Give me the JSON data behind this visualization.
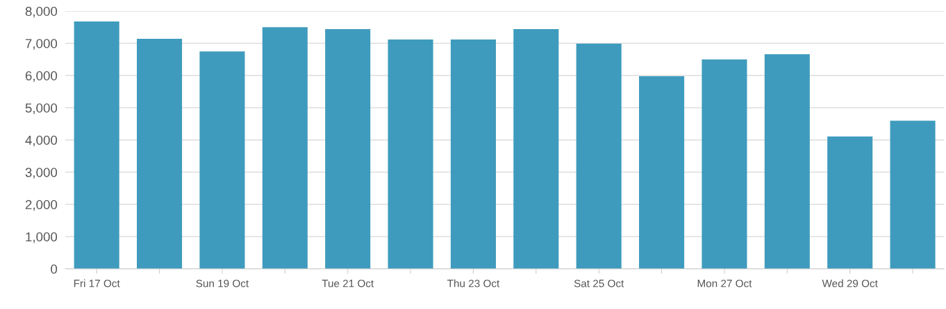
{
  "chart_data": {
    "type": "bar",
    "categories": [
      "Fri 17 Oct",
      null,
      "Sun 19 Oct",
      null,
      "Tue 21 Oct",
      null,
      "Thu 23 Oct",
      null,
      "Sat 25 Oct",
      null,
      "Mon 27 Oct",
      null,
      "Wed 29 Oct",
      null
    ],
    "values": [
      7680,
      7140,
      6750,
      7500,
      7440,
      7120,
      7120,
      7440,
      6990,
      5980,
      6500,
      6660,
      4110,
      4600
    ],
    "color": "#3e9bbd",
    "ylim": [
      0,
      8000
    ],
    "yticks": [
      {
        "value": 0,
        "label": "0"
      },
      {
        "value": 1000,
        "label": "1,000"
      },
      {
        "value": 2000,
        "label": "2,000"
      },
      {
        "value": 3000,
        "label": "3,000"
      },
      {
        "value": 4000,
        "label": "4,000"
      },
      {
        "value": 5000,
        "label": "5,000"
      },
      {
        "value": 6000,
        "label": "6,000"
      },
      {
        "value": 7000,
        "label": "7,000"
      },
      {
        "value": 8000,
        "label": "8,000"
      }
    ],
    "grid": "y"
  }
}
